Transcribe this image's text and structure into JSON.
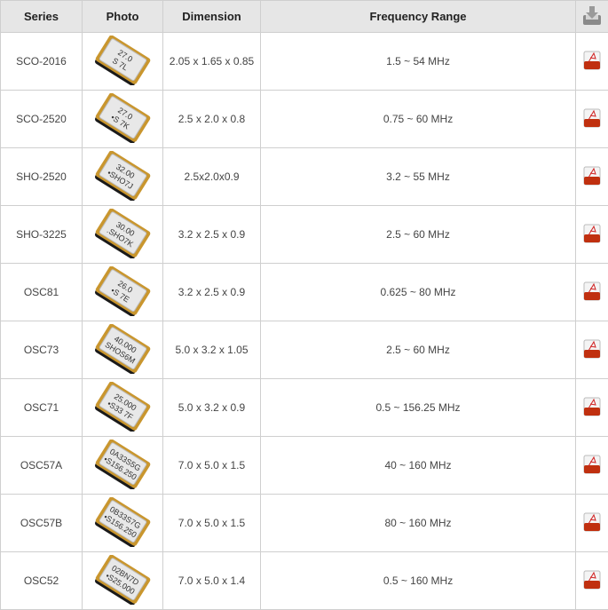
{
  "header": {
    "series": "Series",
    "photo": "Photo",
    "dimension": "Dimension",
    "frequency": "Frequency Range",
    "download_icon": "download-tray-icon"
  },
  "colors": {
    "header_bg": "#e6e6e6",
    "border": "#cfcfcf",
    "text": "#444444",
    "pdf_red": "#c0300f"
  },
  "rows": [
    {
      "series": "SCO-2016",
      "dimension": "2.05 x 1.65 x 0.85",
      "frequency": "1.5 ~ 54 MHz",
      "marking": [
        "27.0",
        "S 7L"
      ],
      "icon": "pdf-icon"
    },
    {
      "series": "SCO-2520",
      "dimension": "2.5 x 2.0 x 0.8",
      "frequency": "0.75 ~ 60 MHz",
      "marking": [
        "27.0",
        "•S 7K"
      ],
      "icon": "pdf-icon"
    },
    {
      "series": "SHO-2520",
      "dimension": "2.5x2.0x0.9",
      "frequency": "3.2 ~ 55 MHz",
      "marking": [
        "32.00",
        "•SHO7J"
      ],
      "icon": "pdf-icon"
    },
    {
      "series": "SHO-3225",
      "dimension": "3.2 x 2.5 x 0.9",
      "frequency": "2.5 ~ 60 MHz",
      "marking": [
        "30.00",
        ".SHO7K"
      ],
      "icon": "pdf-icon"
    },
    {
      "series": "OSC81",
      "dimension": "3.2 x 2.5 x 0.9",
      "frequency": "0.625 ~ 80 MHz",
      "marking": [
        "26.0",
        "•S 7E"
      ],
      "icon": "pdf-icon"
    },
    {
      "series": "OSC73",
      "dimension": "5.0 x 3.2 x 1.05",
      "frequency": "2.5 ~ 60 MHz",
      "marking": [
        "40.000",
        "SHOS6M"
      ],
      "icon": "pdf-icon"
    },
    {
      "series": "OSC71",
      "dimension": "5.0 x 3.2 x 0.9",
      "frequency": "0.5 ~ 156.25 MHz",
      "marking": [
        "25.000",
        "•S33 7F"
      ],
      "icon": "pdf-icon"
    },
    {
      "series": "OSC57A",
      "dimension": "7.0 x 5.0 x 1.5",
      "frequency": "40 ~ 160 MHz",
      "marking": [
        "0A33S5G",
        "•S156.250"
      ],
      "icon": "pdf-icon"
    },
    {
      "series": "OSC57B",
      "dimension": "7.0 x 5.0 x 1.5",
      "frequency": "80 ~ 160 MHz",
      "marking": [
        "0B33S7G",
        "•S156.250"
      ],
      "icon": "pdf-icon"
    },
    {
      "series": "OSC52",
      "dimension": "7.0 x 5.0 x 1.4",
      "frequency": "0.5 ~ 160 MHz",
      "marking": [
        "02BN7D",
        "•S25.000"
      ],
      "icon": "pdf-icon"
    }
  ]
}
